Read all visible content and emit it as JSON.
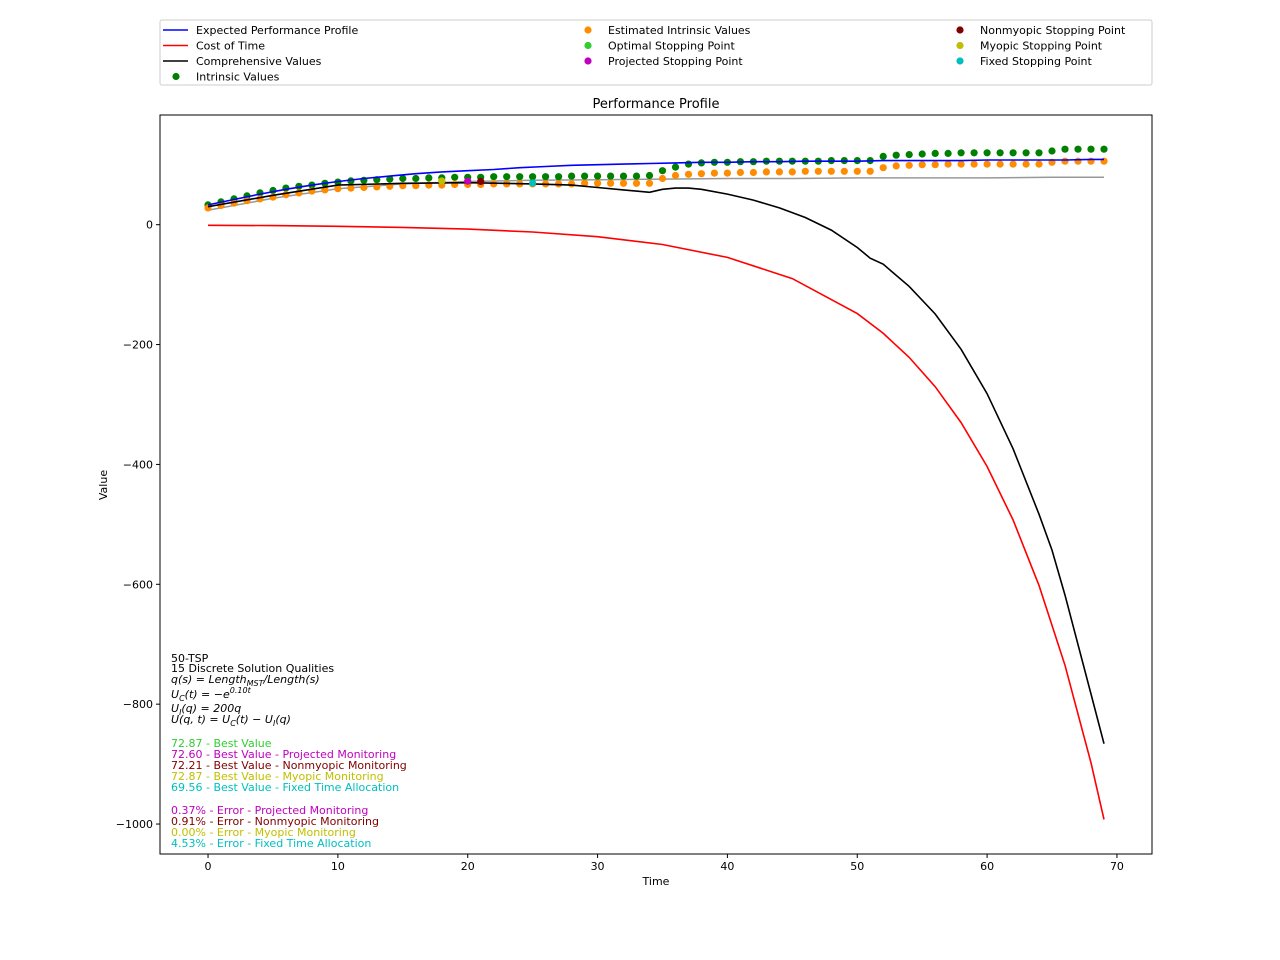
{
  "chart_data": {
    "type": "line",
    "title": "Performance Profile",
    "xlabel": "Time",
    "ylabel": "Value",
    "xlim": [
      -3.7,
      72.7
    ],
    "ylim": [
      -1050,
      183
    ],
    "xticks": [
      0,
      10,
      20,
      30,
      40,
      50,
      60,
      70
    ],
    "yticks": [
      0,
      -200,
      -400,
      -600,
      -800,
      -1000
    ],
    "ytick_labels": [
      "0",
      "−200",
      "−400",
      "−600",
      "−800",
      "−1000"
    ],
    "grid": false,
    "legend_placement": "top, above plot",
    "series": [
      {
        "name": "Expected Performance Profile",
        "kind": "line",
        "color": "#0000ff",
        "x": [
          0,
          2,
          4,
          6,
          8,
          10,
          12,
          14,
          16,
          18,
          20,
          22,
          24,
          26,
          28,
          30,
          32,
          34,
          36,
          38,
          40,
          42,
          44,
          46,
          48,
          50,
          52,
          54,
          56,
          58,
          60,
          62,
          64,
          66,
          68,
          69
        ],
        "y": [
          33,
          42,
          51,
          59,
          66,
          72,
          77,
          81,
          85,
          88,
          90,
          92,
          95,
          97,
          99,
          100,
          101,
          102,
          103,
          104,
          104,
          105,
          105,
          106,
          106,
          106,
          107,
          107,
          107,
          107,
          108,
          108,
          108,
          108,
          109,
          109
        ]
      },
      {
        "name": "Cost of Time",
        "kind": "line",
        "color": "#ff0000",
        "x": [
          0,
          5,
          10,
          15,
          20,
          25,
          30,
          35,
          40,
          45,
          50,
          52,
          54,
          56,
          58,
          60,
          62,
          64,
          66,
          68,
          69
        ],
        "y": [
          -1,
          -1.6,
          -2.7,
          -4.5,
          -7.4,
          -12.2,
          -20.1,
          -33.1,
          -54.6,
          -90,
          -148.4,
          -181.3,
          -221.4,
          -270.4,
          -330.3,
          -403.4,
          -492.7,
          -601.8,
          -735.1,
          -897.8,
          -992.3
        ]
      },
      {
        "name": "Comprehensive Values",
        "kind": "line",
        "color": "#000000",
        "x": [
          0,
          5,
          10,
          15,
          20,
          25,
          28,
          30,
          32,
          34,
          35,
          36,
          37,
          38,
          40,
          42,
          44,
          46,
          48,
          50,
          51,
          52,
          54,
          56,
          58,
          60,
          62,
          64,
          65,
          66,
          68,
          69
        ],
        "y": [
          30,
          49,
          66,
          69,
          70,
          68,
          66,
          62,
          58,
          54,
          59,
          61,
          61,
          59,
          51,
          41,
          28,
          12,
          -9,
          -38,
          -56,
          -66,
          -103,
          -149,
          -208,
          -282,
          -374,
          -483,
          -543,
          -618,
          -783,
          -866
        ]
      },
      {
        "name": "Intrinsic Values",
        "kind": "scatter",
        "color": "#008000",
        "x": [
          0,
          1,
          2,
          3,
          4,
          5,
          6,
          7,
          8,
          9,
          10,
          11,
          12,
          13,
          14,
          15,
          16,
          17,
          18,
          19,
          20,
          21,
          22,
          23,
          24,
          25,
          26,
          27,
          28,
          29,
          30,
          31,
          32,
          33,
          34,
          35,
          36,
          37,
          38,
          39,
          40,
          41,
          42,
          43,
          44,
          45,
          46,
          47,
          48,
          49,
          50,
          51,
          52,
          53,
          54,
          55,
          56,
          57,
          58,
          59,
          60,
          61,
          62,
          63,
          64,
          65,
          66,
          67,
          68,
          69
        ],
        "y": [
          33,
          38,
          43,
          48,
          53,
          57,
          61,
          64,
          66,
          69,
          71,
          73,
          74,
          75,
          76,
          77,
          77,
          78,
          78,
          79,
          79,
          79,
          80,
          80,
          80,
          80,
          80,
          80,
          81,
          81,
          81,
          81,
          81,
          81,
          82,
          90,
          96,
          101,
          103,
          104,
          104,
          105,
          105,
          106,
          106,
          106,
          106,
          106,
          107,
          107,
          107,
          107,
          114,
          116,
          117,
          118,
          119,
          119,
          120,
          120,
          120,
          120,
          120,
          120,
          120,
          123,
          126,
          126,
          126,
          126
        ]
      },
      {
        "name": "Estimated Intrinsic Values",
        "kind": "scatter",
        "color": "#ff8c00",
        "x": [
          0,
          1,
          2,
          3,
          4,
          5,
          6,
          7,
          8,
          9,
          10,
          11,
          12,
          13,
          14,
          15,
          16,
          17,
          18,
          19,
          20,
          21,
          22,
          23,
          24,
          25,
          26,
          27,
          28,
          29,
          30,
          31,
          32,
          33,
          34,
          35,
          36,
          37,
          38,
          39,
          40,
          41,
          42,
          43,
          44,
          45,
          46,
          47,
          48,
          49,
          50,
          51,
          52,
          53,
          54,
          55,
          56,
          57,
          58,
          59,
          60,
          61,
          62,
          63,
          64,
          65,
          66,
          67,
          68,
          69
        ],
        "y": [
          28,
          32,
          36,
          40,
          43,
          46,
          50,
          53,
          56,
          58,
          60,
          61,
          62,
          63,
          64,
          65,
          65,
          66,
          66,
          67,
          67,
          67,
          68,
          68,
          68,
          68,
          68,
          68,
          68,
          69,
          69,
          69,
          69,
          69,
          69,
          77,
          82,
          84,
          85,
          86,
          86,
          87,
          87,
          88,
          88,
          88,
          89,
          89,
          89,
          89,
          89,
          89,
          95,
          98,
          99,
          100,
          100,
          101,
          101,
          101,
          101,
          101,
          101,
          101,
          101,
          104,
          106,
          106,
          106,
          106
        ]
      },
      {
        "name": "Optimal Stopping Point",
        "kind": "point",
        "color": "#32cd32",
        "x": [
          18
        ],
        "y": [
          72.87
        ]
      },
      {
        "name": "Projected Stopping Point",
        "kind": "point",
        "color": "#bf00bf",
        "x": [
          20
        ],
        "y": [
          72.6
        ]
      },
      {
        "name": "Nonmyopic Stopping Point",
        "kind": "point",
        "color": "#800000",
        "x": [
          21
        ],
        "y": [
          72.21
        ]
      },
      {
        "name": "Myopic Stopping Point",
        "kind": "point",
        "color": "#bfbf00",
        "x": [
          18
        ],
        "y": [
          72.87
        ]
      },
      {
        "name": "Fixed Stopping Point",
        "kind": "point",
        "color": "#00bfbf",
        "x": [
          25
        ],
        "y": [
          69.56
        ]
      }
    ],
    "extra_line": {
      "kind": "line",
      "color": "#999999",
      "x": [
        0,
        5,
        10,
        15,
        20,
        25,
        30,
        35,
        40,
        45,
        50,
        55,
        60,
        65,
        69
      ],
      "y": [
        24,
        44,
        60,
        68,
        72,
        74,
        75,
        76,
        77,
        77,
        78,
        78,
        78,
        79,
        79
      ]
    },
    "annotations": {
      "problem": "50-TSP",
      "qualities": "15 Discrete Solution Qualities",
      "formula_q": "q(s) = Length_MST/Length(s)",
      "formula_uc": "U_C(t) = −e^{0.10t}",
      "formula_ui": "U_I(q) = 200q",
      "formula_u": "U(q, t) = U_C(t) − U_I(q)",
      "values": [
        {
          "text": "72.87 - Best Value",
          "color": "#32cd32"
        },
        {
          "text": "72.60 - Best Value - Projected Monitoring",
          "color": "#bf00bf"
        },
        {
          "text": "72.21 - Best Value - Nonmyopic Monitoring",
          "color": "#800000"
        },
        {
          "text": "72.87 - Best Value - Myopic Monitoring",
          "color": "#bfbf00"
        },
        {
          "text": "69.56 - Best Value - Fixed Time Allocation",
          "color": "#00bfbf"
        }
      ],
      "errors": [
        {
          "text": "0.37% - Error - Projected Monitoring",
          "color": "#bf00bf"
        },
        {
          "text": "0.91% - Error - Nonmyopic Monitoring",
          "color": "#800000"
        },
        {
          "text": "0.00% - Error - Myopic Monitoring",
          "color": "#bfbf00"
        },
        {
          "text": "4.53% - Error - Fixed Time Allocation",
          "color": "#00bfbf"
        }
      ]
    }
  }
}
